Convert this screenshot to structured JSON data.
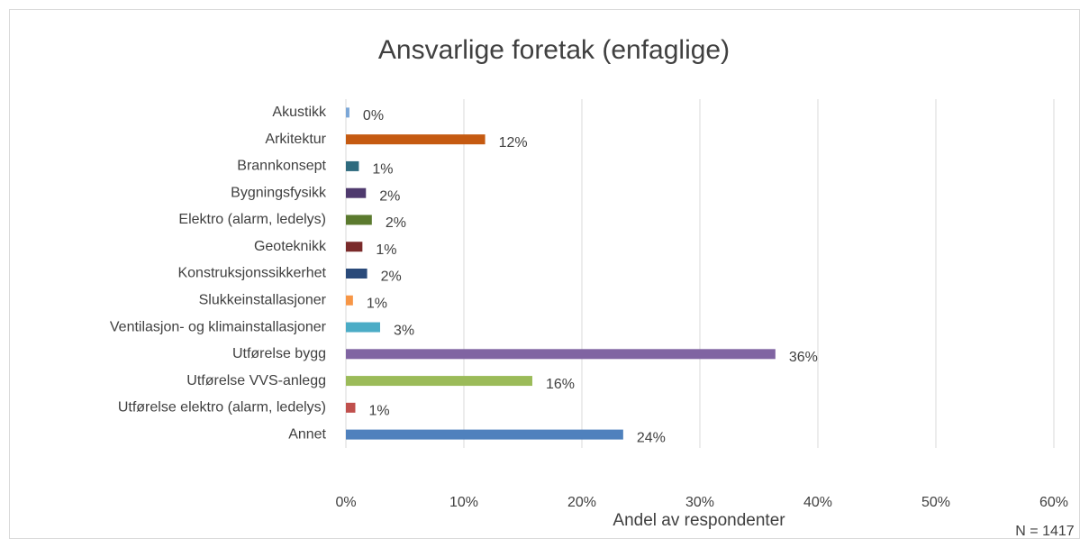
{
  "chart_data": {
    "type": "bar",
    "orientation": "horizontal",
    "title": "Ansvarlige foretak (enfaglige)",
    "x_label": "Andel av respondenter",
    "annotation": "N = 1417",
    "categories": [
      "Akustikk",
      "Arkitektur",
      "Brannkonsept",
      "Bygningsfysikk",
      "Elektro (alarm, ledelys)",
      "Geoteknikk",
      "Konstruksjonssikkerhet",
      "Slukkeinstallasjoner",
      "Ventilasjon- og klimainstallasjoner",
      "Utførelse bygg",
      "Utførelse VVS-anlegg",
      "Utførelse elektro (alarm, ledelys)",
      "Annet"
    ],
    "values": [
      0.3,
      11.8,
      1.1,
      1.7,
      2.2,
      1.4,
      1.8,
      0.6,
      2.9,
      36.4,
      15.8,
      0.8,
      23.5
    ],
    "value_labels": [
      "0%",
      "12%",
      "1%",
      "2%",
      "2%",
      "1%",
      "2%",
      "1%",
      "3%",
      "36%",
      "16%",
      "1%",
      "24%"
    ],
    "colors": [
      "#7ba7d7",
      "#c55a11",
      "#2e6b7e",
      "#4f3a6e",
      "#5b7a2e",
      "#7a2a2a",
      "#2a4a7a",
      "#f79646",
      "#4bacc6",
      "#8064a2",
      "#9bbb59",
      "#c0504d",
      "#4f81bd"
    ],
    "xlim": [
      0,
      60
    ],
    "xticks": [
      {
        "value": 0,
        "label": "0%"
      },
      {
        "value": 10,
        "label": "10%"
      },
      {
        "value": 20,
        "label": "20%"
      },
      {
        "value": 30,
        "label": "30%"
      },
      {
        "value": 40,
        "label": "40%"
      },
      {
        "value": 50,
        "label": "50%"
      },
      {
        "value": 60,
        "label": "60%"
      }
    ],
    "grid": true
  }
}
